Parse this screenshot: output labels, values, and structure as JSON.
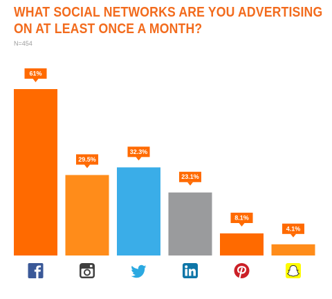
{
  "chart_data": {
    "type": "bar",
    "title_lines": [
      "WHAT SOCIAL NETWORKS ARE YOU ADVERTISING",
      "ON AT LEAST ONCE A MONTH?"
    ],
    "subtitle": "N=454",
    "categories": [
      "Facebook",
      "Instagram",
      "Twitter",
      "LinkedIn",
      "Pinterest",
      "Snapchat"
    ],
    "values": [
      61,
      29.5,
      32.3,
      23.1,
      8.1,
      4.1
    ],
    "value_labels": [
      "61%",
      "29.5%",
      "32.3%",
      "23.1%",
      "8.1%",
      "4.1%"
    ],
    "icons": [
      "facebook-icon",
      "instagram-icon",
      "twitter-icon",
      "linkedin-icon",
      "pinterest-icon",
      "snapchat-icon"
    ],
    "bar_colors": [
      "#ff6a00",
      "#ff8c1a",
      "#3aade8",
      "#9a9b9d",
      "#ff6a00",
      "#ff8c1a"
    ],
    "ylim": [
      0,
      61
    ],
    "grid": false,
    "legend": "none"
  },
  "colors": {
    "title": "#f26b1d",
    "label_bubble": "#ff6a00",
    "facebook": "#3b5998",
    "instagram": "#3f3f3f",
    "twitter": "#2ba9e1",
    "linkedin": "#0e76a8",
    "pinterest": "#cb2027",
    "snapchat": "#fffc00"
  }
}
